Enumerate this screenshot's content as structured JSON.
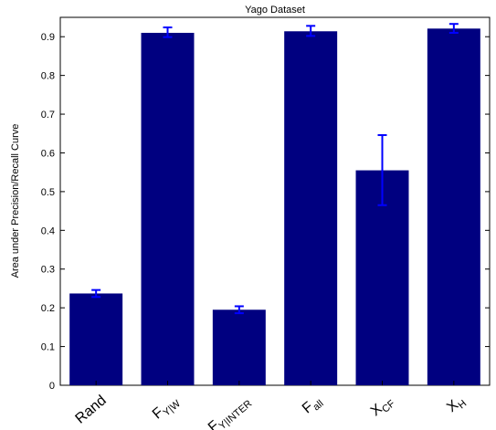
{
  "chart_data": {
    "type": "bar",
    "title": "Yago Dataset",
    "ylabel": "Area under Precision/Recall Curve",
    "xlabel": "",
    "ylim": [
      0,
      0.95
    ],
    "yticks": [
      "0",
      "0.1",
      "0.2",
      "0.3",
      "0.4",
      "0.5",
      "0.6",
      "0.7",
      "0.8",
      "0.9"
    ],
    "categories": [
      {
        "main": "Rand",
        "sub": ""
      },
      {
        "main": "F",
        "sub": "Y|W"
      },
      {
        "main": "F",
        "sub": "Y|INTER"
      },
      {
        "main": "F",
        "sub": "all"
      },
      {
        "main": "X",
        "sub": "CF"
      },
      {
        "main": "X",
        "sub": "H"
      }
    ],
    "values": [
      0.237,
      0.91,
      0.195,
      0.914,
      0.555,
      0.921
    ],
    "error_low": [
      0.228,
      0.899,
      0.186,
      0.902,
      0.465,
      0.91
    ],
    "error_high": [
      0.246,
      0.924,
      0.204,
      0.928,
      0.646,
      0.933
    ],
    "bar_color": "#000080",
    "error_color": "#0000ff",
    "grid": false
  }
}
